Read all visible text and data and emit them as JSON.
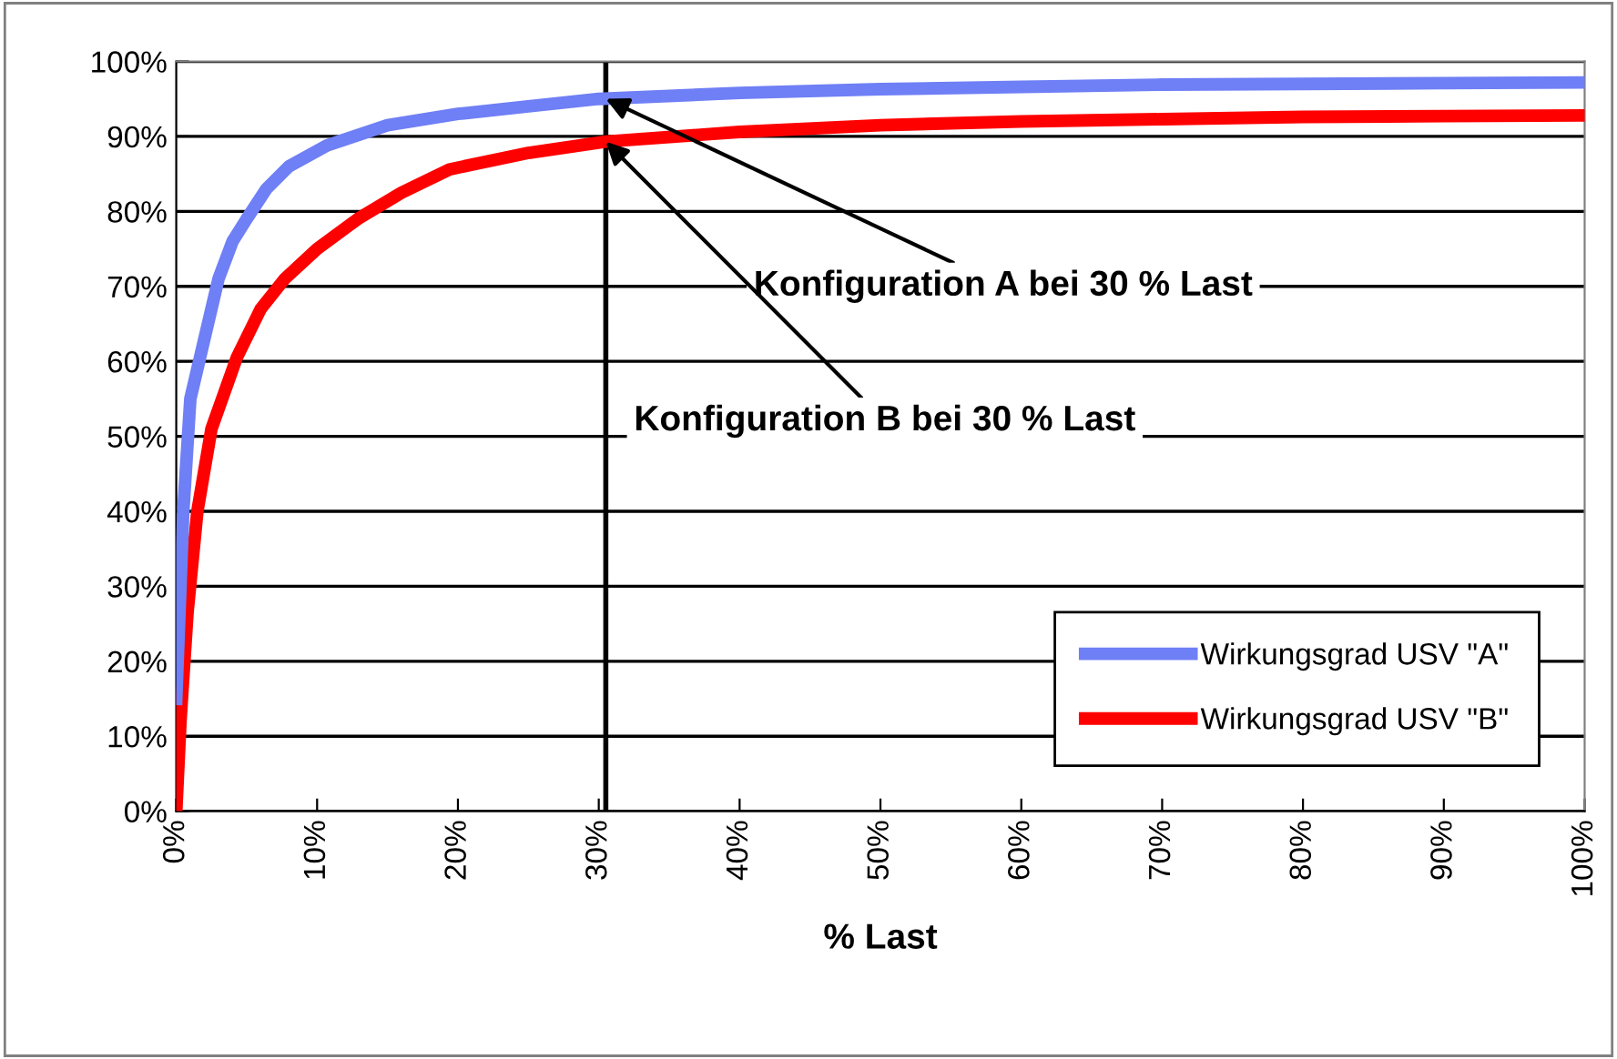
{
  "chart_data": {
    "type": "line",
    "xlabel": "% Last",
    "series": [
      {
        "name": "Wirkungsgrad USV \"A\"",
        "color": "#6f7ff5",
        "x": [
          0,
          0.5,
          1,
          2,
          3,
          4,
          5,
          6.4,
          8,
          10.7,
          15,
          20,
          25,
          30,
          40,
          50,
          60,
          70,
          80,
          90,
          100
        ],
        "values": [
          15,
          40,
          55,
          63,
          71,
          76,
          79,
          83,
          86,
          88.8,
          91.5,
          93,
          94,
          95,
          95.8,
          96.3,
          96.6,
          96.9,
          97,
          97.1,
          97.2
        ]
      },
      {
        "name": "Wirkungsgrad USV \"B\"",
        "color": "#ff0000",
        "x": [
          0,
          0.3,
          0.8,
          1.5,
          2.5,
          4.3,
          6,
          7.7,
          10,
          12.9,
          16,
          19.4,
          25,
          30.5,
          40,
          50,
          60,
          70,
          80,
          90,
          100
        ],
        "values": [
          0,
          12,
          26.5,
          40,
          51,
          60.5,
          67,
          71,
          75,
          79,
          82.5,
          85.6,
          87.8,
          89.3,
          90.6,
          91.5,
          92,
          92.3,
          92.6,
          92.7,
          92.8
        ]
      }
    ],
    "xlim": [
      0,
      100
    ],
    "xticks": [
      {
        "value": 0,
        "label": "0%"
      },
      {
        "value": 10,
        "label": "10%"
      },
      {
        "value": 20,
        "label": "20%"
      },
      {
        "value": 30,
        "label": "30%"
      },
      {
        "value": 40,
        "label": "40%"
      },
      {
        "value": 50,
        "label": "50%"
      },
      {
        "value": 60,
        "label": "60%"
      },
      {
        "value": 70,
        "label": "70%"
      },
      {
        "value": 80,
        "label": "80%"
      },
      {
        "value": 90,
        "label": "90%"
      },
      {
        "value": 100,
        "label": "100%"
      }
    ],
    "ylim": [
      0,
      100
    ],
    "yticks": [
      {
        "value": 0,
        "label": "0%"
      },
      {
        "value": 10,
        "label": "10%"
      },
      {
        "value": 20,
        "label": "20%"
      },
      {
        "value": 30,
        "label": "30%"
      },
      {
        "value": 40,
        "label": "40%"
      },
      {
        "value": 50,
        "label": "50%"
      },
      {
        "value": 60,
        "label": "60%"
      },
      {
        "value": 70,
        "label": "70%"
      },
      {
        "value": 80,
        "label": "80%"
      },
      {
        "value": 90,
        "label": "90%"
      },
      {
        "value": 100,
        "label": "100%"
      }
    ],
    "ref_lines": [
      {
        "axis": "x",
        "value": 30.5,
        "color": "#000000"
      }
    ],
    "annotations": [
      {
        "text": "Konfiguration A bei 30 % Last",
        "x": 30.5,
        "y": 95
      },
      {
        "text": "Konfiguration B bei 30 % Last",
        "x": 30.5,
        "y": 89.3
      }
    ],
    "grid": "y",
    "legend": "bottom right",
    "marker": "none",
    "line_style": "solid"
  }
}
